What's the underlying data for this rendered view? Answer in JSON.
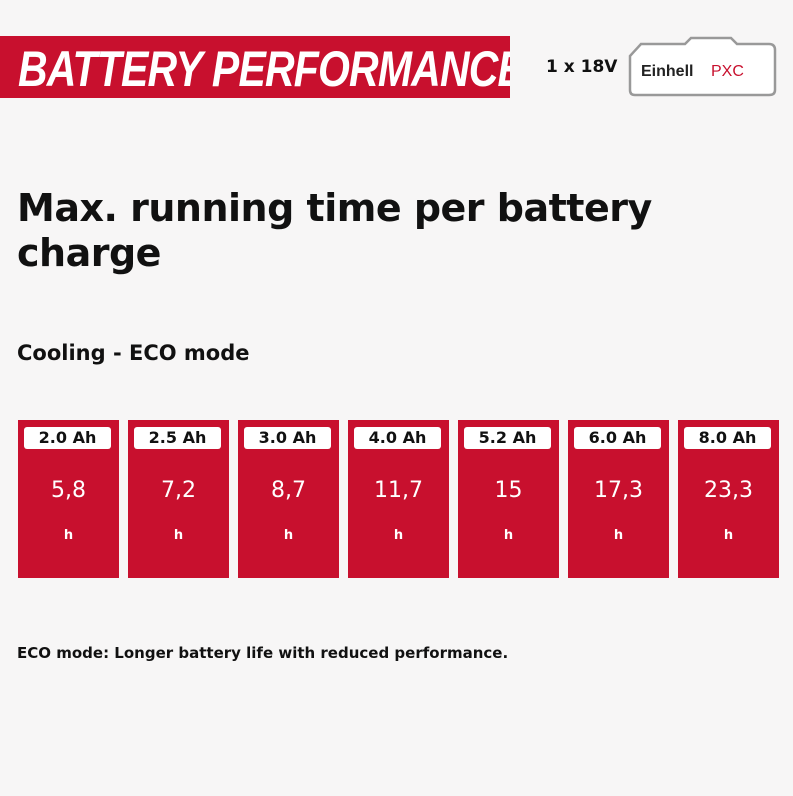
{
  "header": {
    "title": "BATTERY PERFORMANCE",
    "voltage": "1 x 18V",
    "logo": {
      "brand": "Einhell",
      "line": "PXC"
    }
  },
  "title": "Max. running time per battery charge",
  "subtitle": "Cooling - ECO mode",
  "batteries": [
    {
      "capacity": "2.0 Ah",
      "runtime": "5,8",
      "unit": "h"
    },
    {
      "capacity": "2.5 Ah",
      "runtime": "7,2",
      "unit": "h"
    },
    {
      "capacity": "3.0 Ah",
      "runtime": "8,7",
      "unit": "h"
    },
    {
      "capacity": "4.0 Ah",
      "runtime": "11,7",
      "unit": "h"
    },
    {
      "capacity": "5.2 Ah",
      "runtime": "15",
      "unit": "h"
    },
    {
      "capacity": "6.0 Ah",
      "runtime": "17,3",
      "unit": "h"
    },
    {
      "capacity": "8.0 Ah",
      "runtime": "23,3",
      "unit": "h"
    }
  ],
  "footnote": "ECO mode: Longer battery life with reduced performance."
}
